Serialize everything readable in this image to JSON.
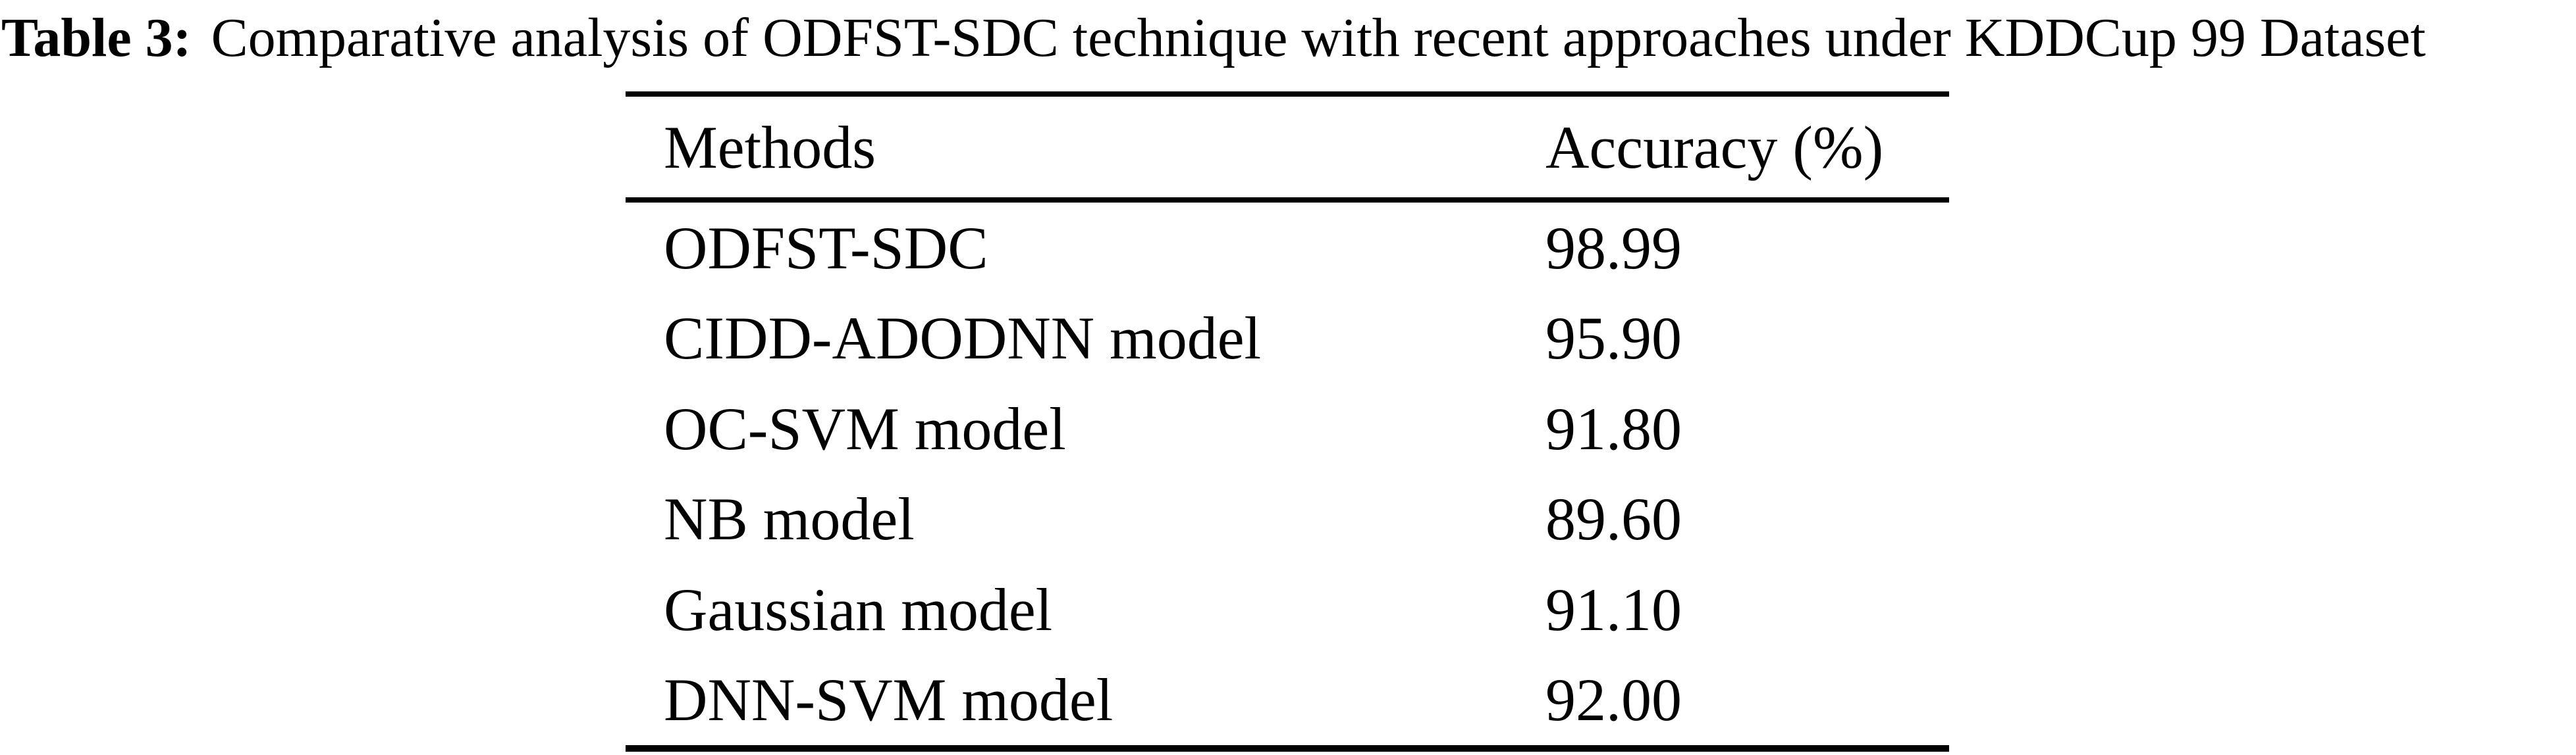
{
  "caption": {
    "label": "Table 3:",
    "text": "Comparative analysis of ODFST-SDC technique with recent approaches under KDDCup 99 Dataset"
  },
  "table": {
    "columns": [
      "Methods",
      "Accuracy (%)"
    ],
    "rows": [
      {
        "method": "ODFST-SDC",
        "accuracy": "98.99"
      },
      {
        "method": "CIDD-ADODNN model",
        "accuracy": "95.90"
      },
      {
        "method": "OC-SVM model",
        "accuracy": "91.80"
      },
      {
        "method": "NB model",
        "accuracy": "89.60"
      },
      {
        "method": "Gaussian model",
        "accuracy": "91.10"
      },
      {
        "method": "DNN-SVM model",
        "accuracy": "92.00"
      }
    ]
  },
  "chart_data": {
    "type": "table",
    "title": "Table 3: Comparative analysis of ODFST-SDC technique with recent approaches under KDDCup 99 Dataset",
    "columns": [
      "Methods",
      "Accuracy (%)"
    ],
    "categories": [
      "ODFST-SDC",
      "CIDD-ADODNN model",
      "OC-SVM model",
      "NB model",
      "Gaussian model",
      "DNN-SVM model"
    ],
    "values": [
      98.99,
      95.9,
      91.8,
      89.6,
      91.1,
      92.0
    ]
  },
  "colors": {
    "text": "#000000",
    "background": "#ffffff",
    "rule": "#000000"
  }
}
